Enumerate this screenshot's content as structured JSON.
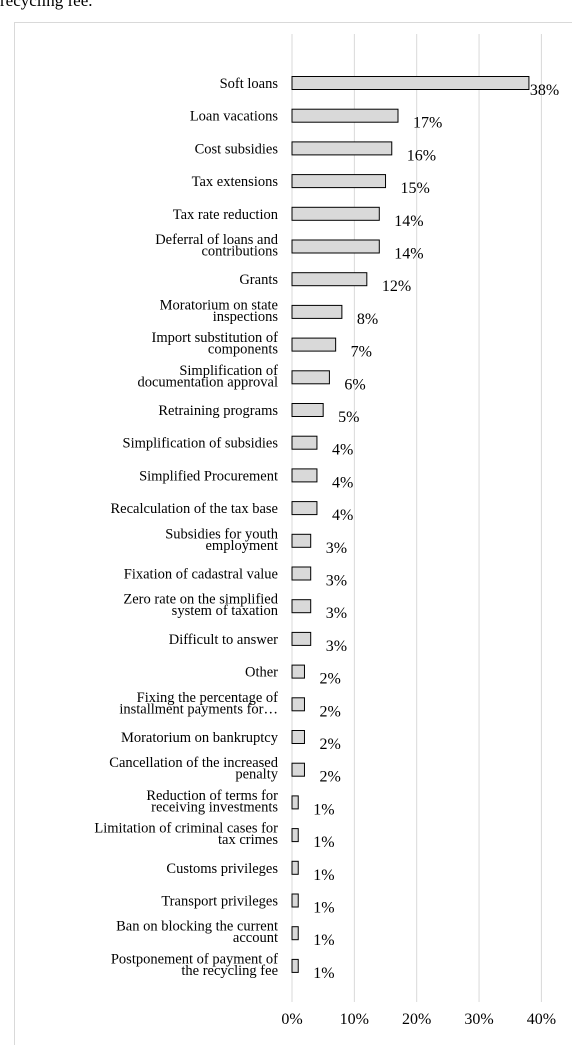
{
  "caption": "recycling fee.",
  "chart_data": {
    "type": "bar",
    "orientation": "horizontal",
    "categories": [
      [
        "Soft loans"
      ],
      [
        "Loan vacations"
      ],
      [
        "Cost subsidies"
      ],
      [
        "Tax extensions"
      ],
      [
        "Tax rate reduction"
      ],
      [
        "Deferral of loans and",
        "contributions"
      ],
      [
        "Grants"
      ],
      [
        "Moratorium on state",
        "inspections"
      ],
      [
        "Import substitution of",
        "components"
      ],
      [
        "Simplification of",
        "documentation approval"
      ],
      [
        "Retraining programs"
      ],
      [
        "Simplification of subsidies"
      ],
      [
        "Simplified Procurement"
      ],
      [
        "Recalculation of the tax base"
      ],
      [
        "Subsidies for youth",
        "employment"
      ],
      [
        "Fixation of cadastral value"
      ],
      [
        "Zero rate on the simplified",
        "system of taxation"
      ],
      [
        "Difficult to answer"
      ],
      [
        "Other"
      ],
      [
        "Fixing the percentage of",
        "installment payments for…"
      ],
      [
        "Moratorium on bankruptcy"
      ],
      [
        "Cancellation of the increased",
        "penalty"
      ],
      [
        "Reduction of terms for",
        "receiving investments"
      ],
      [
        "Limitation of criminal cases for",
        "tax crimes"
      ],
      [
        "Customs privileges"
      ],
      [
        "Transport privileges"
      ],
      [
        "Ban on blocking the current",
        "account"
      ],
      [
        "Postponement of payment of",
        "the recycling fee"
      ]
    ],
    "values": [
      38,
      17,
      16,
      15,
      14,
      14,
      12,
      8,
      7,
      6,
      5,
      4,
      4,
      4,
      3,
      3,
      3,
      3,
      2,
      2,
      2,
      2,
      1,
      1,
      1,
      1,
      1,
      1
    ],
    "value_labels": [
      "38%",
      "17%",
      "16%",
      "15%",
      "14%",
      "14%",
      "12%",
      "8%",
      "7%",
      "6%",
      "5%",
      "4%",
      "4%",
      "4%",
      "3%",
      "3%",
      "3%",
      "3%",
      "2%",
      "2%",
      "2%",
      "2%",
      "1%",
      "1%",
      "1%",
      "1%",
      "1%",
      "1%"
    ],
    "xticks": [
      "0%",
      "10%",
      "20%",
      "30%",
      "40%"
    ],
    "xlim": [
      0,
      40
    ],
    "grid": true,
    "bar_color": "#d9d9d9",
    "bar_edge_color": "#000000",
    "grid_color": "#d9d9d9"
  }
}
